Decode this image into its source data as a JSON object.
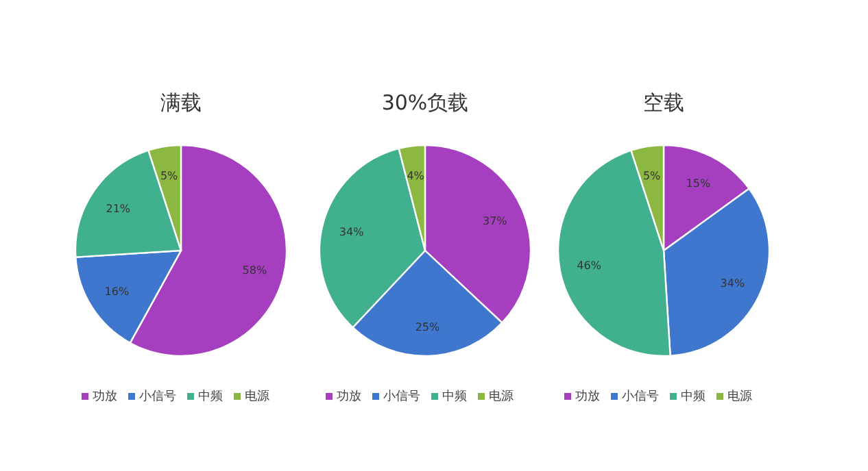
{
  "chart_data": [
    {
      "type": "pie",
      "title": "满载",
      "categories": [
        "功放",
        "小信号",
        "中频",
        "电源"
      ],
      "values": [
        58,
        16,
        21,
        5
      ],
      "value_labels": [
        "58%",
        "16%",
        "21%",
        "5%"
      ],
      "colors": [
        "#a53fc0",
        "#3f77cf",
        "#40b08e",
        "#8cb841"
      ],
      "legend": "bottom"
    },
    {
      "type": "pie",
      "title": "30%负载",
      "categories": [
        "功放",
        "小信号",
        "中频",
        "电源"
      ],
      "values": [
        37,
        25,
        34,
        4
      ],
      "value_labels": [
        "37%",
        "25%",
        "34%",
        "4%"
      ],
      "colors": [
        "#a53fc0",
        "#3f77cf",
        "#40b08e",
        "#8cb841"
      ],
      "legend": "bottom"
    },
    {
      "type": "pie",
      "title": "空载",
      "categories": [
        "功放",
        "小信号",
        "中频",
        "电源"
      ],
      "values": [
        15,
        34,
        46,
        5
      ],
      "value_labels": [
        "15%",
        "34%",
        "46%",
        "5%"
      ],
      "colors": [
        "#a53fc0",
        "#3f77cf",
        "#40b08e",
        "#8cb841"
      ],
      "legend": "bottom"
    }
  ]
}
